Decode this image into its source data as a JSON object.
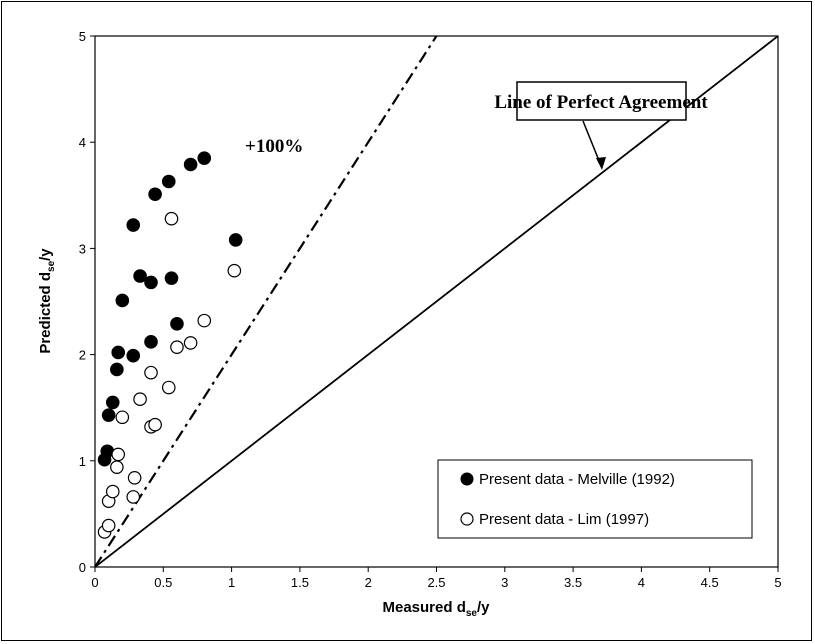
{
  "chart_data": {
    "type": "scatter",
    "xlabel": {
      "main": "Measured  d",
      "sub": "se",
      "tail": "/y"
    },
    "ylabel": {
      "main": "Predicted  d",
      "sub": "se",
      "tail": "/y"
    },
    "xlim": [
      0,
      5
    ],
    "ylim": [
      0,
      5
    ],
    "x_ticks": [
      "0",
      "0.5",
      "1",
      "1.5",
      "2",
      "2.5",
      "3",
      "3.5",
      "4",
      "4.5",
      "5"
    ],
    "y_ticks": [
      "0",
      "1",
      "2",
      "3",
      "4",
      "5"
    ],
    "x_tick_values": [
      0,
      0.5,
      1,
      1.5,
      2,
      2.5,
      3,
      3.5,
      4,
      4.5,
      5
    ],
    "y_tick_values": [
      0,
      1,
      2,
      3,
      4,
      5
    ],
    "grid": false,
    "legend_position": "bottom-right",
    "series": [
      {
        "name": "Present data -  Melville (1992)",
        "marker": "filled-circle",
        "color": "#000000",
        "points": [
          [
            0.07,
            1.01
          ],
          [
            0.09,
            1.09
          ],
          [
            0.1,
            1.43
          ],
          [
            0.13,
            1.55
          ],
          [
            0.16,
            1.86
          ],
          [
            0.17,
            2.02
          ],
          [
            0.2,
            2.51
          ],
          [
            0.28,
            1.99
          ],
          [
            0.28,
            3.22
          ],
          [
            0.33,
            2.74
          ],
          [
            0.41,
            2.68
          ],
          [
            0.41,
            2.12
          ],
          [
            0.44,
            3.51
          ],
          [
            0.54,
            3.63
          ],
          [
            0.56,
            2.72
          ],
          [
            0.6,
            2.29
          ],
          [
            0.7,
            3.79
          ],
          [
            0.8,
            3.85
          ],
          [
            1.03,
            3.08
          ]
        ]
      },
      {
        "name": "Present data - Lim (1997)",
        "marker": "open-circle",
        "color": "#000000",
        "points": [
          [
            0.07,
            0.33
          ],
          [
            0.1,
            0.39
          ],
          [
            0.1,
            0.62
          ],
          [
            0.13,
            0.71
          ],
          [
            0.16,
            0.94
          ],
          [
            0.17,
            1.06
          ],
          [
            0.2,
            1.41
          ],
          [
            0.28,
            0.66
          ],
          [
            0.29,
            0.84
          ],
          [
            0.33,
            1.58
          ],
          [
            0.41,
            1.32
          ],
          [
            0.41,
            1.83
          ],
          [
            0.44,
            1.34
          ],
          [
            0.54,
            1.69
          ],
          [
            0.56,
            3.28
          ],
          [
            0.6,
            2.07
          ],
          [
            0.7,
            2.11
          ],
          [
            0.8,
            2.32
          ],
          [
            1.02,
            2.79
          ]
        ]
      }
    ],
    "lines": [
      {
        "name": "Line of Perfect Agreement",
        "slope": 1,
        "style": "solid"
      },
      {
        "name": "+100%",
        "slope": 2,
        "style": "dash-dot"
      }
    ],
    "annotations": {
      "perfect_agreement": "Line of Perfect Agreement",
      "plus_100": "+100%"
    }
  }
}
